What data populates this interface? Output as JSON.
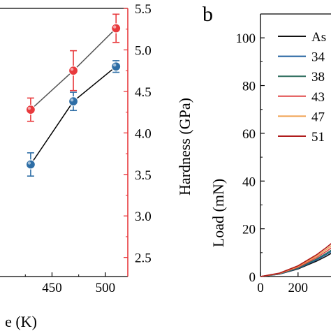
{
  "chart_data": [
    {
      "type": "scatter",
      "panel": "",
      "xlabel": "e (K)",
      "ylabel": "",
      "y2label": "Hardness (GPa)",
      "xlim": [
        398,
        521
      ],
      "ylim": [
        2.27,
        5.5
      ],
      "y2lim": [
        2.27,
        5.5
      ],
      "x_ticks": [
        450,
        500
      ],
      "x_tick_labels": [
        "450",
        "500"
      ],
      "y2_ticks": [
        2.5,
        3.0,
        3.5,
        4.0,
        4.5,
        5.0,
        5.5
      ],
      "y2_tick_labels": [
        "2.5",
        "3.0",
        "3.5",
        "4.0",
        "4.5",
        "5.0",
        "5.5"
      ],
      "y2_axis_color": "#e8393c",
      "grid": false,
      "series": [
        {
          "color": "#e8393c",
          "line_color": "#555555",
          "x": [
            430,
            470,
            510
          ],
          "y": [
            4.28,
            4.75,
            5.26
          ],
          "err": [
            0.14,
            0.24,
            0.17
          ]
        },
        {
          "color": "#2e6ea6",
          "line_color": "#000000",
          "x": [
            430,
            470,
            510
          ],
          "y": [
            3.62,
            4.38,
            4.8
          ],
          "err": [
            0.14,
            0.11,
            0.07
          ]
        }
      ]
    },
    {
      "type": "line",
      "panel": "b",
      "xlabel": "",
      "ylabel": "Load (mN)",
      "xlim": [
        0,
        420
      ],
      "ylim": [
        0,
        110
      ],
      "x_ticks": [
        0,
        200
      ],
      "x_tick_labels": [
        "0",
        "200"
      ],
      "y_ticks": [
        0,
        20,
        40,
        60,
        80,
        100
      ],
      "y_tick_labels": [
        "0",
        "20",
        "40",
        "60",
        "80",
        "100"
      ],
      "grid": false,
      "legend_position": "top-right",
      "series": [
        {
          "name": "As",
          "color": "#111111",
          "x": [
            0,
            100,
            200,
            300,
            350,
            400,
            420
          ],
          "y": [
            0,
            1.0,
            3.2,
            6.5,
            8.5,
            10.8,
            11.8
          ]
        },
        {
          "name": "34",
          "color": "#1f5f9e",
          "x": [
            0,
            100,
            200,
            300,
            350,
            400,
            420
          ],
          "y": [
            0,
            1.0,
            3.4,
            7.0,
            9.2,
            11.6,
            12.6
          ]
        },
        {
          "name": "38",
          "color": "#2e6e5e",
          "x": [
            0,
            100,
            200,
            300,
            350,
            400,
            420
          ],
          "y": [
            0,
            1.1,
            3.6,
            7.4,
            9.7,
            12.2,
            13.3
          ]
        },
        {
          "name": "43",
          "color": "#e04848",
          "x": [
            0,
            100,
            200,
            300,
            350,
            400,
            420
          ],
          "y": [
            0,
            1.2,
            3.9,
            8.0,
            10.5,
            13.3,
            14.5
          ]
        },
        {
          "name": "47",
          "color": "#f0a050",
          "x": [
            0,
            100,
            200,
            300,
            350,
            400,
            420
          ],
          "y": [
            0,
            1.3,
            4.2,
            8.6,
            11.3,
            14.3,
            15.6
          ]
        },
        {
          "name": "51",
          "color": "#b01c1c",
          "x": [
            0,
            100,
            200,
            300,
            350,
            400,
            420
          ],
          "y": [
            0,
            1.4,
            4.5,
            9.2,
            12.1,
            15.3,
            16.7
          ]
        }
      ]
    }
  ]
}
